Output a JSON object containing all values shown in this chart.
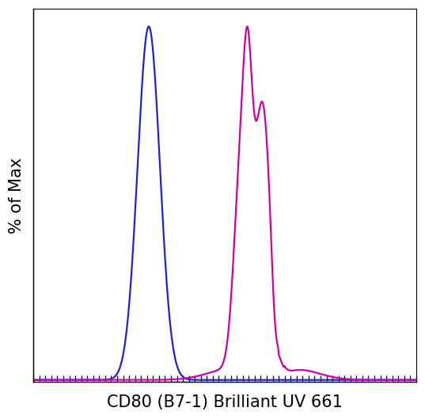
{
  "xlabel": "CD80 (B7-1) Brilliant UV 661",
  "ylabel": "% of Max",
  "xlabel_fontsize": 15,
  "ylabel_fontsize": 15,
  "background_color": "#ffffff",
  "blue_color": "#2222cc",
  "magenta_color": "#cc00aa",
  "xlim": [
    0,
    1
  ],
  "ylim": [
    -0.005,
    1.05
  ],
  "linewidth": 1.6
}
